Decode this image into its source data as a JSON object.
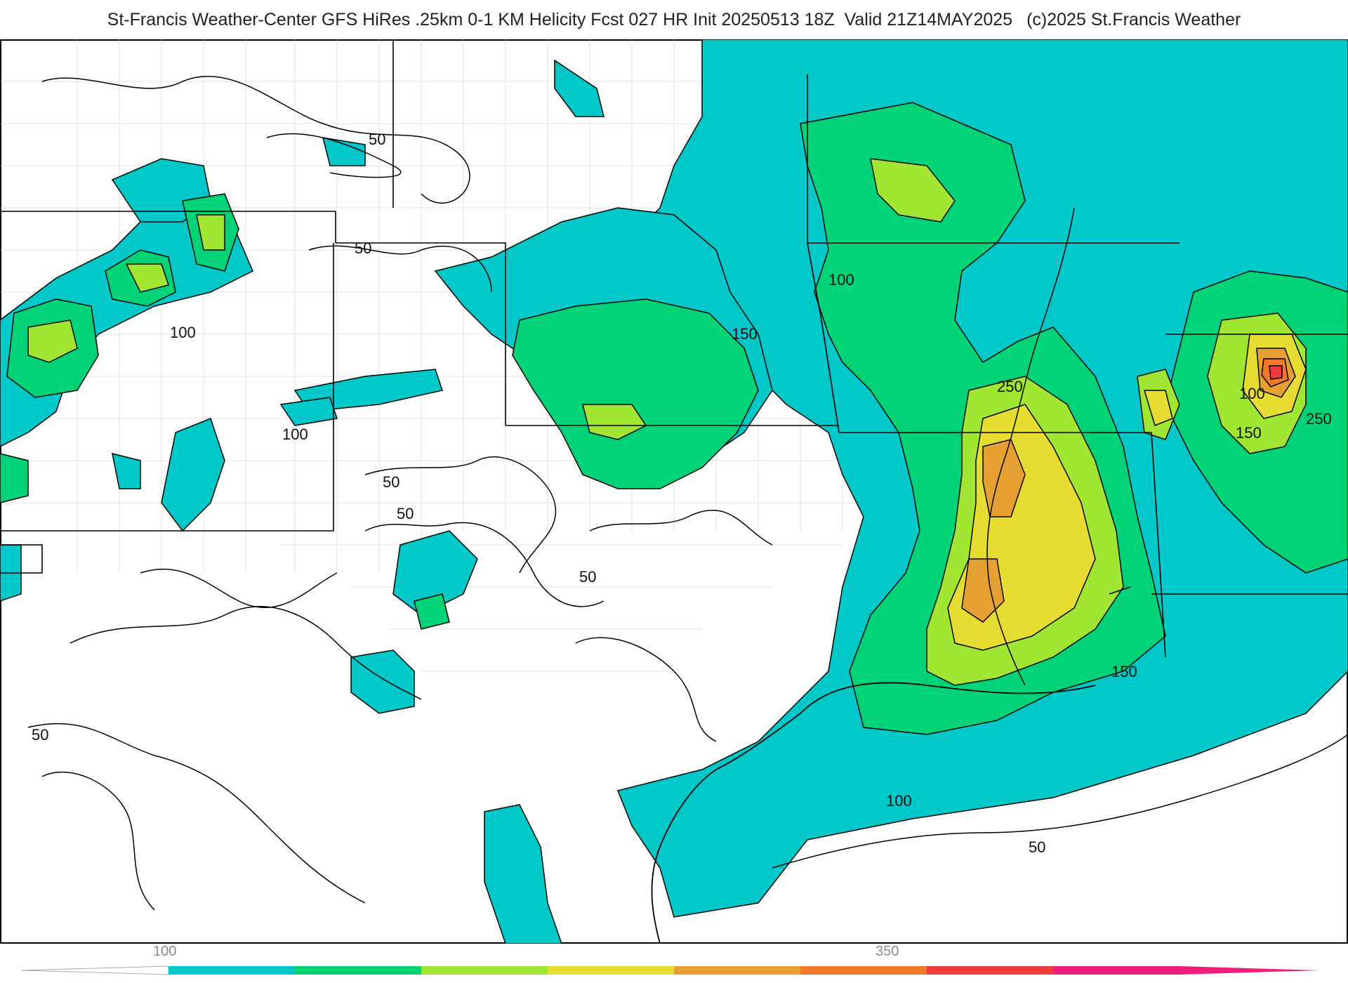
{
  "header": {
    "title": "St-Francis Weather-Center GFS HiRes .25km 0-1 KM Helicity Fcst 027 HR Init 20250513 18Z  Valid 21Z14MAY2025",
    "copyright": "(c)2025 St.Francis Weather"
  },
  "colorbar": {
    "tick_labels": [
      "100",
      "350"
    ],
    "colors": [
      "#00c8c8",
      "#00d278",
      "#a0e632",
      "#e6dc32",
      "#e6a032",
      "#f07828",
      "#f03c3c",
      "#f01e78"
    ]
  },
  "map": {
    "field": "0-1 KM Helicity",
    "contour_labels": [
      "50",
      "50",
      "50",
      "50",
      "50",
      "50",
      "50",
      "100",
      "100",
      "100",
      "100",
      "100",
      "150",
      "150",
      "150",
      "250",
      "250"
    ],
    "colors": {
      "land": "#ffffff",
      "border": "#000000",
      "county": "#bbbbbb",
      "contour": "#000000",
      "shade_100": "#00c8c8",
      "shade_150": "#00d278",
      "shade_200": "#a0e632",
      "shade_250": "#e6dc32",
      "shade_300": "#e6a032",
      "shade_350": "#f07828",
      "shade_400": "#f03c3c"
    }
  }
}
